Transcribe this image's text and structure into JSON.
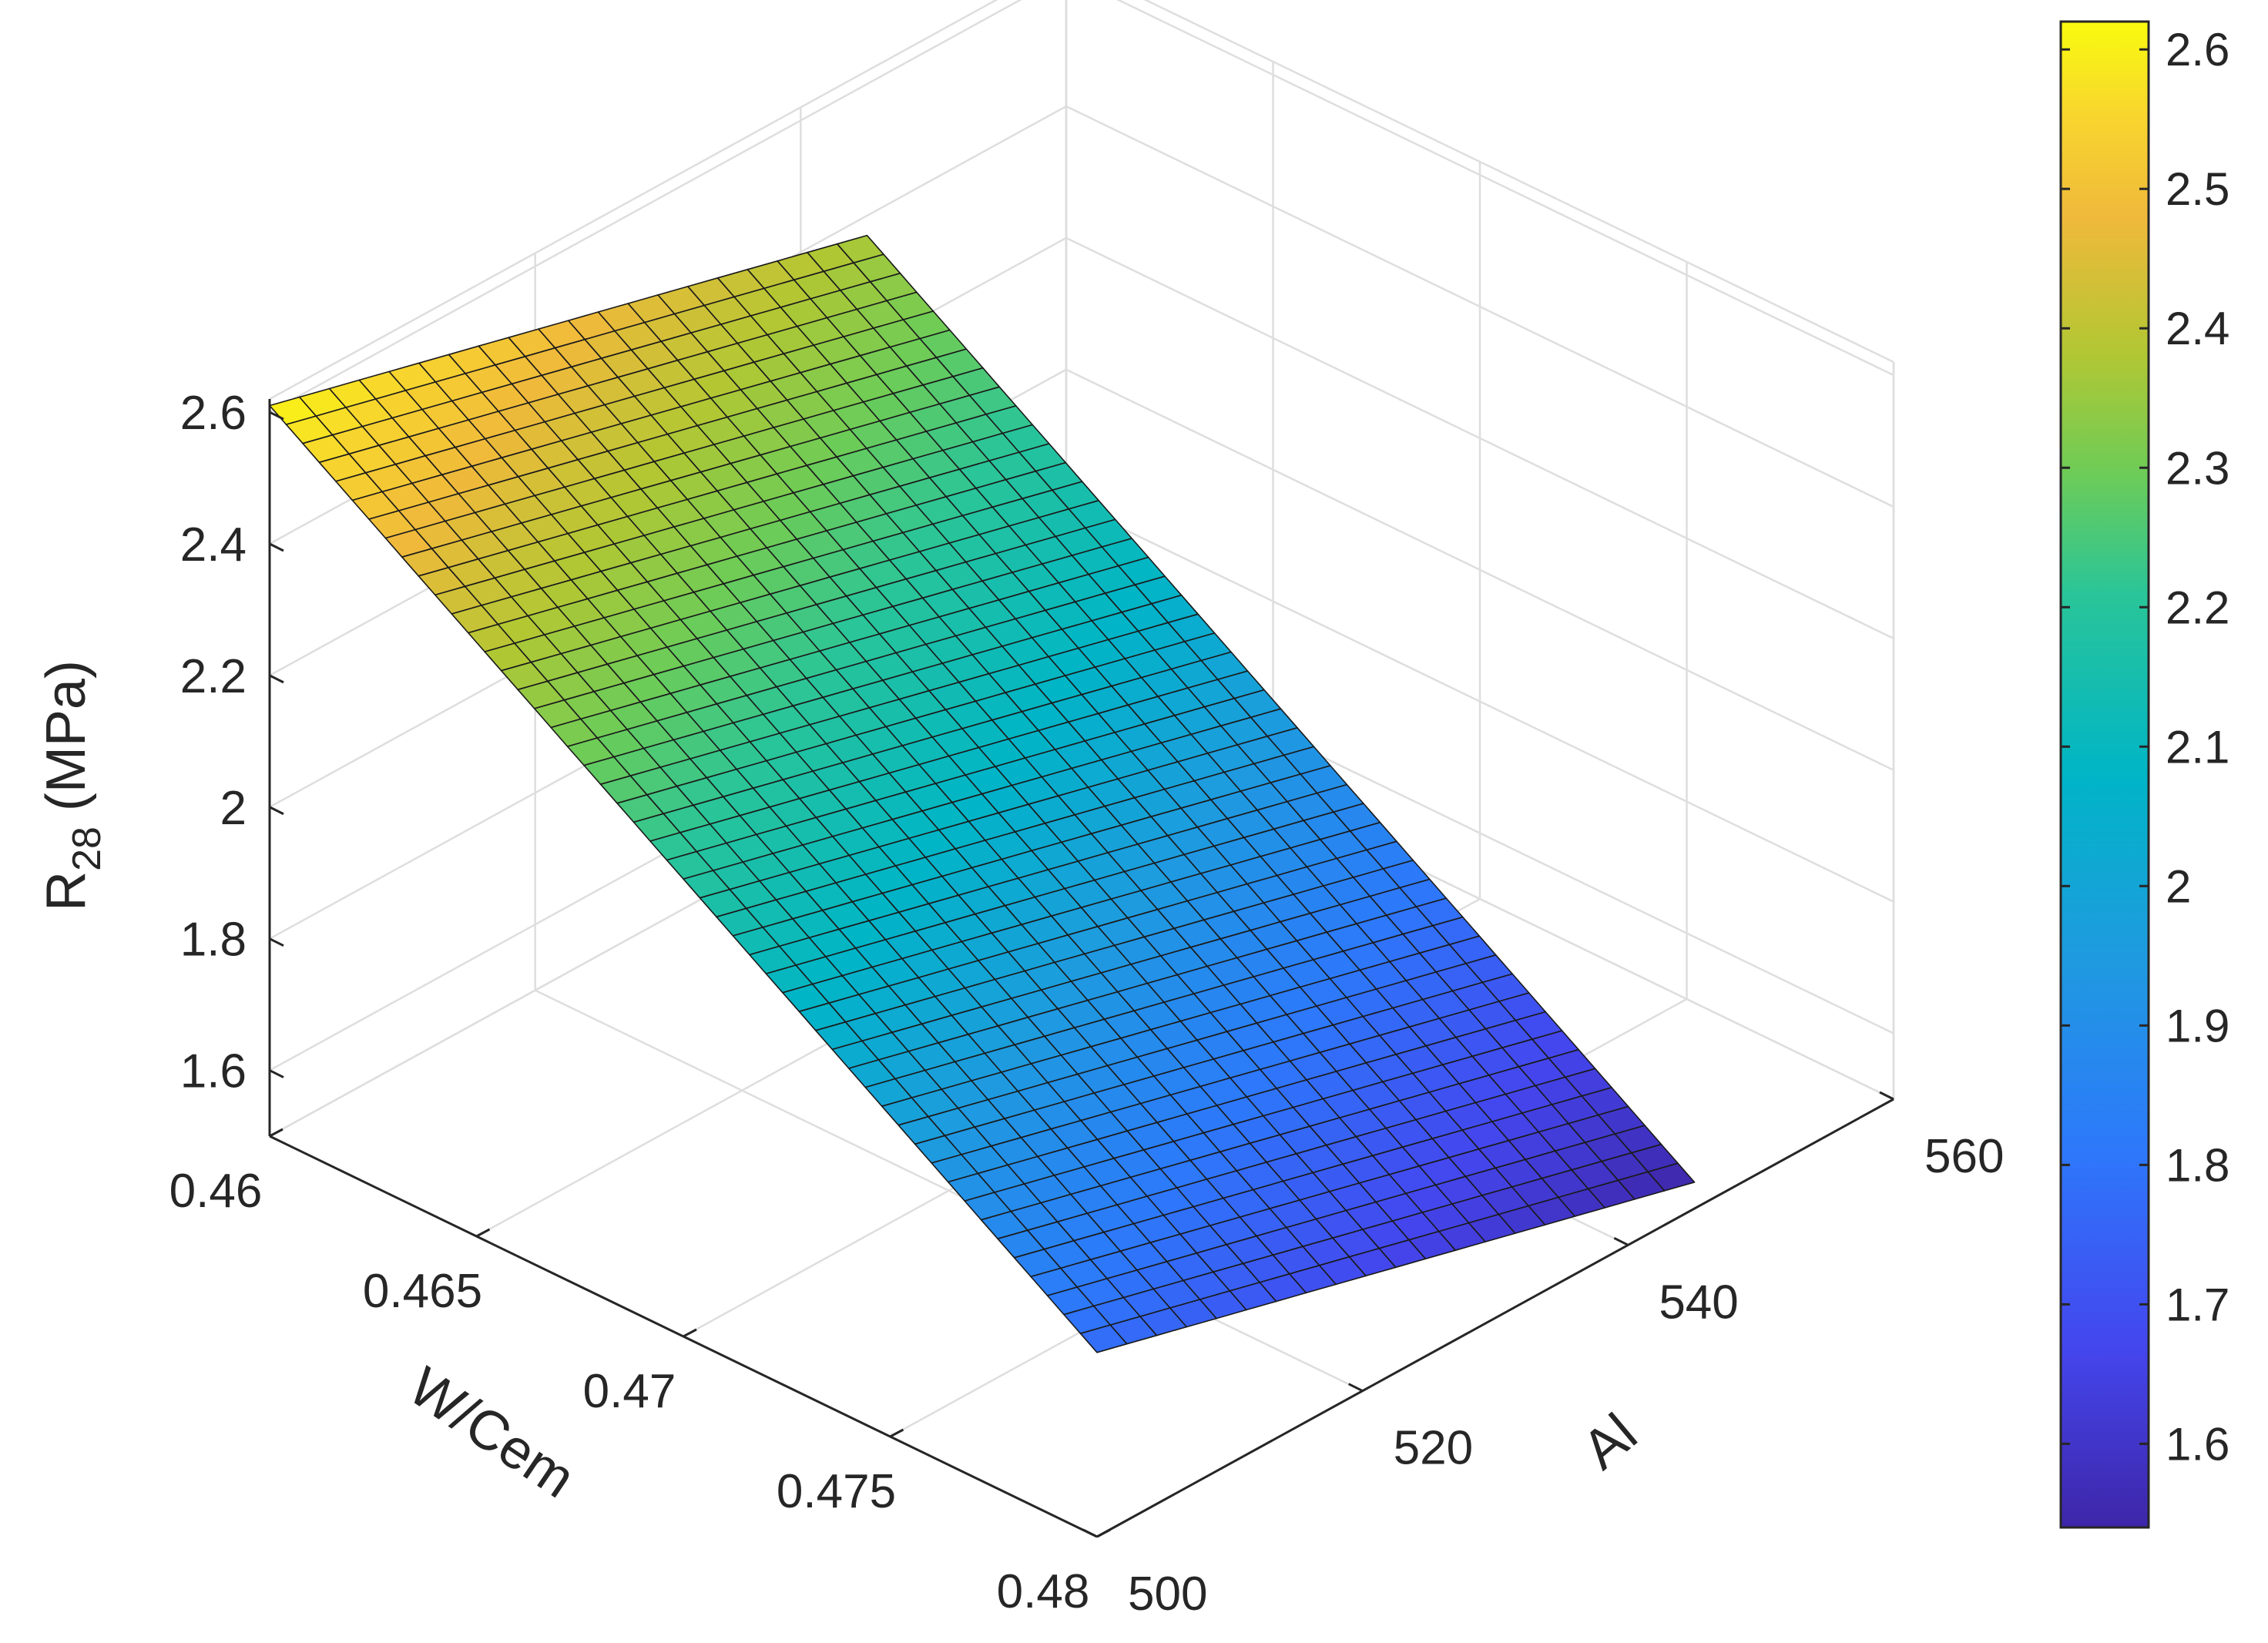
{
  "chart_data": {
    "type": "surface",
    "title": "",
    "xlabel": "W/Cem",
    "ylabel": "Al",
    "zlabel": "R",
    "zlabel_subscript": "28",
    "zlabel_unit": " (MPa)",
    "x_ticks": [
      "0.46",
      "0.465",
      "0.47",
      "0.475",
      "0.48"
    ],
    "y_ticks": [
      "500",
      "520",
      "540",
      "560"
    ],
    "z_ticks": [
      "1.6",
      "1.8",
      "2",
      "2.2",
      "2.4",
      "2.6"
    ],
    "xlim": [
      0.46,
      0.48
    ],
    "ylim": [
      500,
      560
    ],
    "zlim": [
      1.5,
      2.62
    ],
    "grid": true,
    "colormap": "parula",
    "colorbar": {
      "ticks": [
        "1.6",
        "1.7",
        "1.8",
        "1.9",
        "2",
        "2.1",
        "2.2",
        "2.3",
        "2.4",
        "2.5",
        "2.6"
      ],
      "range": [
        1.54,
        2.62
      ]
    },
    "surface": {
      "x_range": [
        0.46,
        0.48
      ],
      "y_range": [
        500,
        545
      ],
      "corners": [
        {
          "x": 0.46,
          "y": 500,
          "z": 2.61
        },
        {
          "x": 0.46,
          "y": 545,
          "z": 2.37
        },
        {
          "x": 0.48,
          "y": 500,
          "z": 1.78
        },
        {
          "x": 0.48,
          "y": 545,
          "z": 1.54
        }
      ]
    }
  }
}
